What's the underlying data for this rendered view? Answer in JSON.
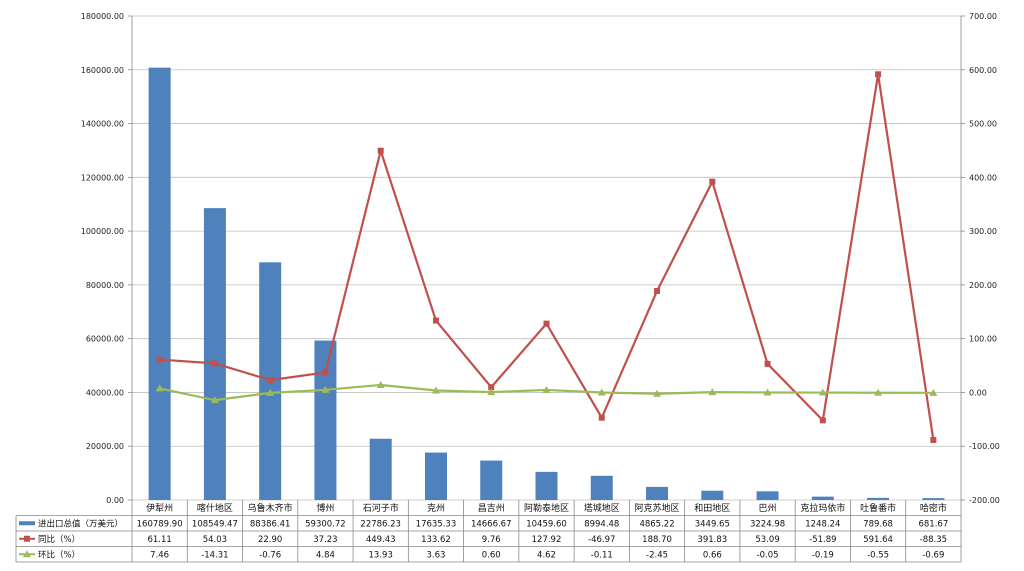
{
  "chart_data": {
    "type": "bar+line",
    "categories": [
      "伊犁州",
      "喀什地区",
      "乌鲁木齐市",
      "博州",
      "石河子市",
      "克州",
      "昌吉州",
      "阿勒泰地区",
      "塔城地区",
      "阿克苏地区",
      "和田地区",
      "巴州",
      "克拉玛依市",
      "吐鲁番市",
      "哈密市"
    ],
    "series": [
      {
        "name": "进出口总值（万美元）",
        "kind": "bar",
        "axis": "left",
        "color": "#4f81bd",
        "values": [
          160789.9,
          108549.47,
          88386.41,
          59300.72,
          22786.23,
          17635.33,
          14666.67,
          10459.6,
          8994.48,
          4865.22,
          3449.65,
          3224.98,
          1248.24,
          789.68,
          681.67
        ],
        "labels": [
          "160789.90",
          "108549.47",
          "88386.41",
          "59300.72",
          "22786.23",
          "17635.33",
          "14666.67",
          "10459.60",
          "8994.48",
          "4865.22",
          "3449.65",
          "3224.98",
          "1248.24",
          "789.68",
          "681.67"
        ]
      },
      {
        "name": "同比（%）",
        "kind": "line",
        "axis": "right",
        "color": "#c0504d",
        "marker": "square",
        "values": [
          61.11,
          54.03,
          22.9,
          37.23,
          449.43,
          133.62,
          9.76,
          127.92,
          -46.97,
          188.7,
          391.83,
          53.09,
          -51.89,
          591.64,
          -88.35
        ],
        "labels": [
          "61.11",
          "54.03",
          "22.90",
          "37.23",
          "449.43",
          "133.62",
          "9.76",
          "127.92",
          "-46.97",
          "188.70",
          "391.83",
          "53.09",
          "-51.89",
          "591.64",
          "-88.35"
        ]
      },
      {
        "name": "环比（%）",
        "kind": "line",
        "axis": "right",
        "color": "#9bbb59",
        "marker": "triangle",
        "values": [
          7.46,
          -14.31,
          -0.76,
          4.84,
          13.93,
          3.63,
          0.6,
          4.62,
          -0.11,
          -2.45,
          0.66,
          -0.05,
          -0.19,
          -0.55,
          -0.69
        ],
        "labels": [
          "7.46",
          "-14.31",
          "-0.76",
          "4.84",
          "13.93",
          "3.63",
          "0.60",
          "4.62",
          "-0.11",
          "-2.45",
          "0.66",
          "-0.05",
          "-0.19",
          "-0.55",
          "-0.69"
        ]
      }
    ],
    "y_left": {
      "min": 0,
      "max": 180000,
      "step": 20000,
      "ticks": [
        "0.00",
        "20000.00",
        "40000.00",
        "60000.00",
        "80000.00",
        "100000.00",
        "120000.00",
        "140000.00",
        "160000.00",
        "180000.00"
      ]
    },
    "y_right": {
      "min": -200,
      "max": 700,
      "step": 100,
      "ticks": [
        "-200.00",
        "-100.00",
        "0.00",
        "100.00",
        "200.00",
        "300.00",
        "400.00",
        "500.00",
        "600.00",
        "700.00"
      ]
    },
    "grid": true,
    "legend": "data-table-below"
  }
}
